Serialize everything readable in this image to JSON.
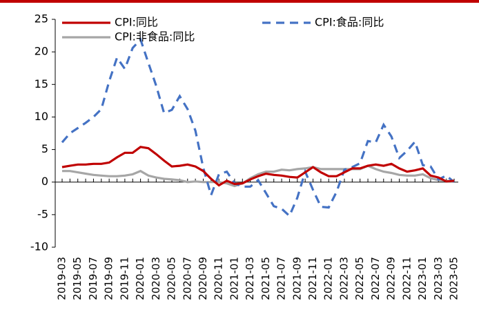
{
  "chart_data": {
    "type": "line",
    "categories": [
      "2019-03",
      null,
      "2019-05",
      null,
      "2019-07",
      null,
      "2019-09",
      null,
      "2019-11",
      null,
      "2020-01",
      null,
      "2020-03",
      null,
      "2020-05",
      null,
      "2020-07",
      null,
      "2020-09",
      null,
      "2020-11",
      null,
      "2021-01",
      null,
      "2021-03",
      null,
      "2021-05",
      null,
      "2021-07",
      null,
      "2021-09",
      null,
      "2021-11",
      null,
      "2022-01",
      null,
      "2022-03",
      null,
      "2022-05",
      null,
      "2022-07",
      null,
      "2022-09",
      null,
      "2022-11",
      null,
      "2023-01",
      null,
      "2023-03",
      null,
      "2023-05"
    ],
    "series": [
      {
        "name": "CPI:同比",
        "color": "#c00000",
        "dash": false,
        "values": [
          2.3,
          2.5,
          2.7,
          2.7,
          2.8,
          2.8,
          3.0,
          3.8,
          4.5,
          4.5,
          5.4,
          5.2,
          4.3,
          3.3,
          2.4,
          2.5,
          2.7,
          2.4,
          1.7,
          0.5,
          -0.5,
          0.2,
          -0.3,
          -0.2,
          0.4,
          0.9,
          1.3,
          1.1,
          1.0,
          0.8,
          0.7,
          1.5,
          2.3,
          1.5,
          0.9,
          0.9,
          1.5,
          2.1,
          2.1,
          2.5,
          2.7,
          2.5,
          2.8,
          2.1,
          1.6,
          1.8,
          2.1,
          1.0,
          0.7,
          0.1,
          0.2
        ]
      },
      {
        "name": "CPI:食品:同比",
        "color": "#4472c4",
        "dash": true,
        "values": [
          6.1,
          7.5,
          8.3,
          9.1,
          10.0,
          11.2,
          15.5,
          19.1,
          17.4,
          20.6,
          21.9,
          18.3,
          14.8,
          10.6,
          11.1,
          13.2,
          11.2,
          7.9,
          2.2,
          -2.0,
          1.2,
          1.6,
          -0.2,
          -0.7,
          -0.7,
          0.3,
          -1.7,
          -3.7,
          -4.1,
          -5.2,
          -2.4,
          1.6,
          -1.2,
          -3.8,
          -3.9,
          -1.5,
          1.9,
          2.3,
          2.9,
          6.3,
          6.1,
          8.8,
          7.0,
          3.7,
          4.8,
          6.2,
          2.6,
          2.4,
          0.4,
          1.0,
          0.0
        ]
      },
      {
        "name": "CPI:非食品:同比",
        "color": "#a6a6a6",
        "dash": false,
        "values": [
          1.7,
          1.7,
          1.5,
          1.3,
          1.1,
          1.0,
          0.9,
          0.9,
          1.0,
          1.2,
          1.7,
          1.0,
          0.7,
          0.5,
          0.4,
          0.3,
          0.0,
          0.1,
          0.0,
          0.0,
          0.0,
          -0.2,
          -0.6,
          -0.2,
          0.6,
          1.2,
          1.6,
          1.6,
          1.9,
          1.8,
          2.0,
          2.1,
          2.3,
          2.0,
          2.0,
          2.0,
          2.0,
          2.0,
          2.0,
          2.5,
          2.0,
          1.6,
          1.4,
          1.1,
          1.0,
          1.0,
          1.2,
          0.6,
          0.3,
          0.2,
          0.1
        ]
      }
    ],
    "ylim": [
      -10,
      25
    ],
    "yticks": [
      -10,
      -5,
      0,
      5,
      10,
      15,
      20,
      25
    ],
    "grid": false
  }
}
